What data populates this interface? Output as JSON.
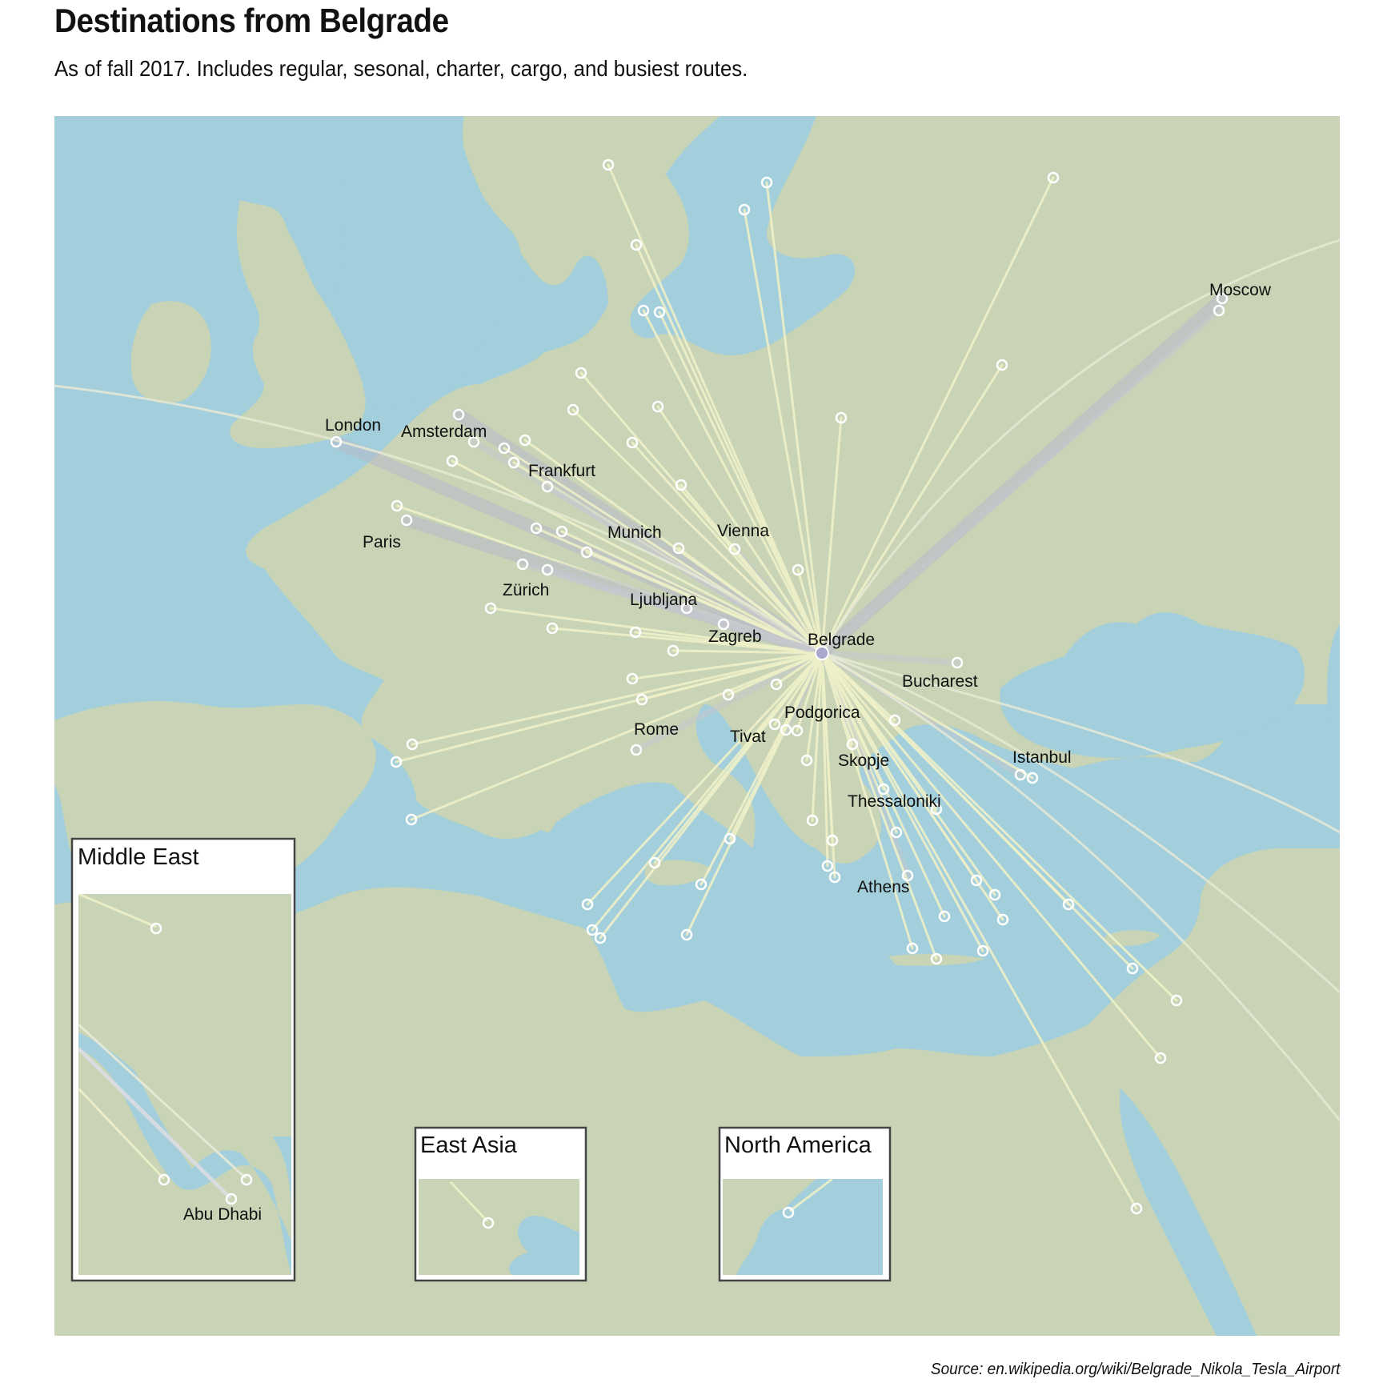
{
  "title": "Destinations from Belgrade",
  "subtitle": "As of fall 2017. Includes regular, sesonal, charter, cargo, and busiest routes.",
  "source": "Source: en.wikipedia.org/wiki/Belgrade_Nikola_Tesla_Airport",
  "colors": {
    "sea": "#a2cfdb",
    "land": "#c8d4b5",
    "route": "#eef0c8",
    "busy_route": "#b8b8cc",
    "hub": "#a8a8cc"
  },
  "hub": {
    "name": "Belgrade"
  },
  "city_labels": [
    "London",
    "Amsterdam",
    "Frankfurt",
    "Paris",
    "Munich",
    "Vienna",
    "Zürich",
    "Ljubljana",
    "Zagreb",
    "Belgrade",
    "Bucharest",
    "Rome",
    "Tivat",
    "Podgorica",
    "Skopje",
    "Istanbul",
    "Thessaloniki",
    "Athens",
    "Moscow"
  ],
  "insets": {
    "middle_east": {
      "title": "Middle East",
      "label": "Abu Dhabi"
    },
    "east_asia": {
      "title": "East Asia"
    },
    "north_america": {
      "title": "North America"
    }
  }
}
